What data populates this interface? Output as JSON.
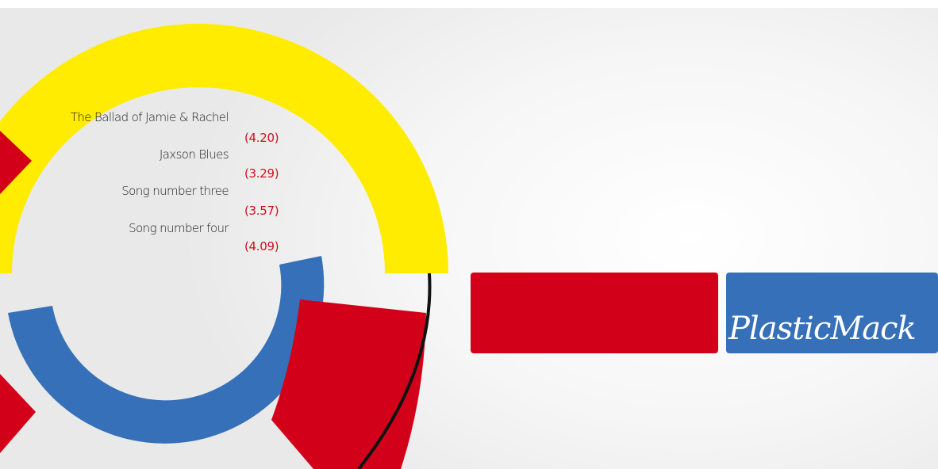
{
  "tracklist": [
    {
      "title": "The Ballad of Jamie & Rachel",
      "duration": "(4.20)"
    },
    {
      "title": "Jaxson Blues",
      "duration": "(3.29)"
    },
    {
      "title": "Song number three",
      "duration": "(3.57)"
    },
    {
      "title": "Song number four",
      "duration": "(4.09)"
    }
  ],
  "brand": "PlasticMack"
}
